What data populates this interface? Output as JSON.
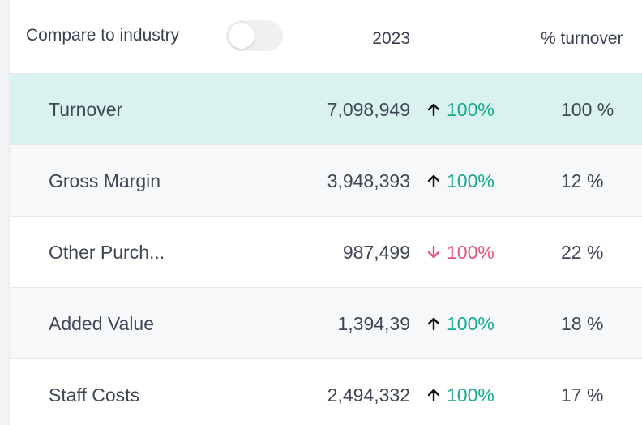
{
  "header": {
    "toggle_label": "Compare to industry",
    "columns": [
      "2023",
      "% turnover"
    ]
  },
  "table": {
    "rows": [
      {
        "label": "Turnover",
        "value": "7,098,949",
        "trend": "up",
        "change": "100%",
        "share": "100 %",
        "highlight": true
      },
      {
        "label": "Gross Margin",
        "value": "3,948,393",
        "trend": "up",
        "change": "100%",
        "share": "12 %"
      },
      {
        "label": "Other Purch...",
        "value": "987,499",
        "trend": "down",
        "change": "100%",
        "share": "22 %"
      },
      {
        "label": "Added Value",
        "value": "1,394,39",
        "trend": "up",
        "change": "100%",
        "share": "18 %"
      },
      {
        "label": "Staff Costs",
        "value": "2,494,332",
        "trend": "up",
        "change": "100%",
        "share": "17 %"
      }
    ]
  }
}
